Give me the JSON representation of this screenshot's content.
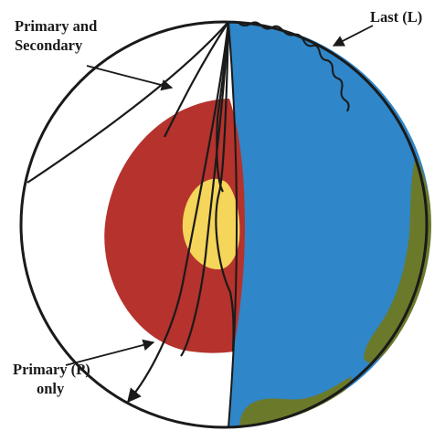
{
  "labels": {
    "primary_secondary_line1": "Primary and",
    "primary_secondary_line2": "Secondary",
    "last": "Last (L)",
    "primary_only_line1": "Primary (P)",
    "primary_only_line2": "only"
  },
  "colors": {
    "outline": "#1a1a1a",
    "outer_core": "#b5322d",
    "inner_core": "#f5d55a",
    "ocean": "#2f86c8",
    "land": "#6b7a2a",
    "background": "#ffffff"
  }
}
